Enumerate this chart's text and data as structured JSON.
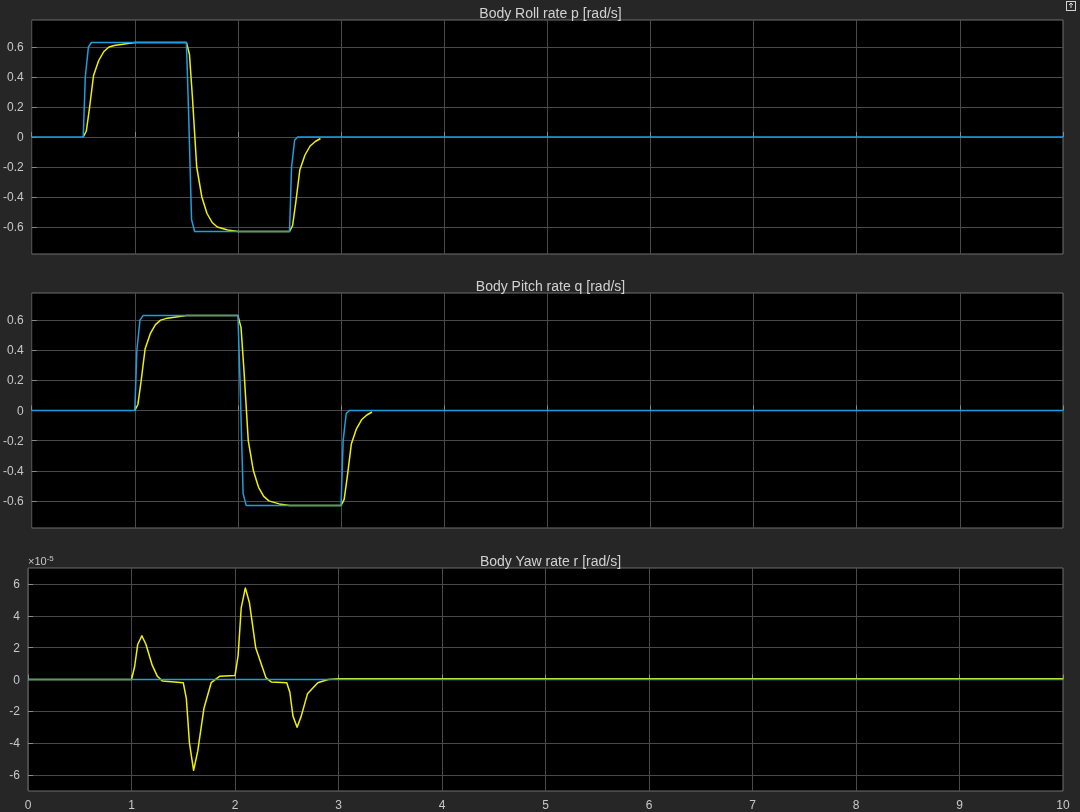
{
  "chart_data": [
    {
      "type": "line",
      "title": "Body Roll rate p [rad/s]",
      "xlim": [
        0,
        10
      ],
      "xticks": [
        0,
        1,
        2,
        3,
        4,
        5,
        6,
        7,
        8,
        9,
        10
      ],
      "ylim": [
        -0.78,
        0.78
      ],
      "yticks": [
        -0.6,
        -0.4,
        -0.2,
        0,
        0.2,
        0.4,
        0.6
      ],
      "grid": true,
      "tick_labels": "y",
      "marker": "none",
      "series": [
        {
          "color": "#f0f000",
          "x": [
            0.5,
            0.53,
            0.56,
            0.6,
            0.65,
            0.7,
            0.75,
            0.8,
            0.9,
            1.0,
            1.5,
            1.53,
            1.56,
            1.6,
            1.65,
            1.7,
            1.75,
            1.8,
            1.9,
            2.0,
            2.5,
            2.53,
            2.56,
            2.6,
            2.65,
            2.7,
            2.75,
            2.8
          ],
          "values": [
            0,
            0.04,
            0.19,
            0.41,
            0.51,
            0.57,
            0.6,
            0.61,
            0.62,
            0.63,
            0.63,
            0.55,
            0.25,
            -0.2,
            -0.4,
            -0.51,
            -0.57,
            -0.6,
            -0.62,
            -0.63,
            -0.63,
            -0.59,
            -0.44,
            -0.22,
            -0.12,
            -0.06,
            -0.03,
            -0.01
          ]
        },
        {
          "color": "#1e9ee0",
          "x": [
            0,
            0.5,
            0.52,
            0.55,
            0.58,
            1.5,
            1.52,
            1.55,
            1.58,
            2.5,
            2.52,
            2.55,
            2.58,
            10
          ],
          "values": [
            0,
            0,
            0.4,
            0.6,
            0.63,
            0.63,
            0.2,
            -0.55,
            -0.63,
            -0.63,
            -0.2,
            -0.02,
            0,
            0
          ]
        }
      ]
    },
    {
      "type": "line",
      "title": "Body Pitch rate q [rad/s]",
      "xlim": [
        0,
        10
      ],
      "xticks": [
        0,
        1,
        2,
        3,
        4,
        5,
        6,
        7,
        8,
        9,
        10
      ],
      "ylim": [
        -0.78,
        0.78
      ],
      "yticks": [
        -0.6,
        -0.4,
        -0.2,
        0,
        0.2,
        0.4,
        0.6
      ],
      "grid": true,
      "tick_labels": "y",
      "marker": "none",
      "series": [
        {
          "color": "#f0f000",
          "x": [
            1.0,
            1.03,
            1.06,
            1.1,
            1.15,
            1.2,
            1.25,
            1.3,
            1.4,
            1.5,
            2.0,
            2.03,
            2.06,
            2.1,
            2.15,
            2.2,
            2.25,
            2.3,
            2.4,
            2.5,
            3.0,
            3.03,
            3.06,
            3.1,
            3.15,
            3.2,
            3.25,
            3.3
          ],
          "values": [
            0,
            0.04,
            0.19,
            0.41,
            0.51,
            0.57,
            0.6,
            0.61,
            0.62,
            0.63,
            0.63,
            0.55,
            0.25,
            -0.2,
            -0.4,
            -0.51,
            -0.57,
            -0.6,
            -0.62,
            -0.63,
            -0.63,
            -0.59,
            -0.44,
            -0.22,
            -0.12,
            -0.06,
            -0.03,
            -0.01
          ]
        },
        {
          "color": "#1e9ee0",
          "x": [
            0,
            1.0,
            1.02,
            1.05,
            1.08,
            2.0,
            2.02,
            2.05,
            2.08,
            3.0,
            3.02,
            3.05,
            3.08,
            10
          ],
          "values": [
            0,
            0,
            0.4,
            0.6,
            0.63,
            0.63,
            0.2,
            -0.55,
            -0.63,
            -0.63,
            -0.2,
            -0.02,
            0,
            0
          ]
        }
      ]
    },
    {
      "type": "line",
      "title": "Body Yaw rate r [rad/s]",
      "xlim": [
        0,
        10
      ],
      "xticks": [
        0,
        1,
        2,
        3,
        4,
        5,
        6,
        7,
        8,
        9,
        10
      ],
      "ylim": [
        -7,
        7
      ],
      "yticks": [
        -6,
        -4,
        -2,
        0,
        2,
        4,
        6
      ],
      "grid": true,
      "marker": "none",
      "annotations": [
        "×10$^{-5}$"
      ],
      "series": [
        {
          "color": "#f0f000",
          "x": [
            0,
            1.0,
            1.03,
            1.06,
            1.1,
            1.14,
            1.2,
            1.25,
            1.3,
            1.5,
            1.53,
            1.56,
            1.6,
            1.64,
            1.7,
            1.77,
            1.85,
            2.0,
            2.03,
            2.06,
            2.1,
            2.14,
            2.2,
            2.3,
            2.35,
            2.5,
            2.53,
            2.56,
            2.6,
            2.64,
            2.7,
            2.8,
            2.9,
            3.0,
            10
          ],
          "values": [
            0,
            0,
            0.8,
            2.2,
            2.75,
            2.2,
            0.9,
            0.2,
            -0.1,
            -0.2,
            -1.2,
            -4.0,
            -5.7,
            -4.5,
            -1.8,
            -0.2,
            0.2,
            0.25,
            1.5,
            4.5,
            5.75,
            4.8,
            2.0,
            0.1,
            -0.15,
            -0.2,
            -0.8,
            -2.3,
            -3.0,
            -2.3,
            -0.9,
            -0.2,
            0,
            0.05,
            0.05
          ]
        },
        {
          "color": "#1e9ee0",
          "x": [
            0,
            10
          ],
          "values": [
            0,
            0
          ]
        }
      ]
    }
  ]
}
